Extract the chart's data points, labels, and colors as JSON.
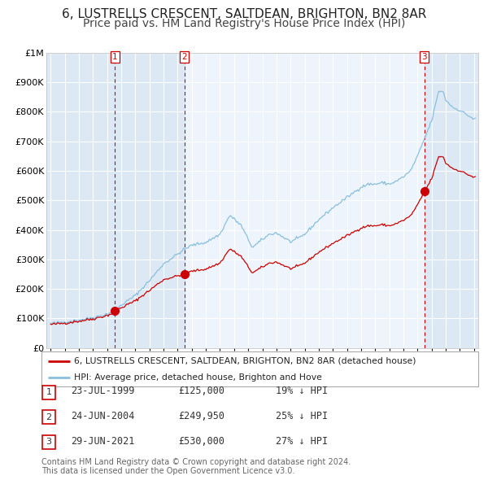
{
  "title1": "6, LUSTRELLS CRESCENT, SALTDEAN, BRIGHTON, BN2 8AR",
  "title2": "Price paid vs. HM Land Registry's House Price Index (HPI)",
  "legend_property": "6, LUSTRELLS CRESCENT, SALTDEAN, BRIGHTON, BN2 8AR (detached house)",
  "legend_hpi": "HPI: Average price, detached house, Brighton and Hove",
  "footer1": "Contains HM Land Registry data © Crown copyright and database right 2024.",
  "footer2": "This data is licensed under the Open Government Licence v3.0.",
  "transactions": [
    {
      "label": "1",
      "date_str": "23-JUL-1999",
      "year": 1999.55,
      "price": 125000,
      "price_str": "£125,000",
      "pct": "19% ↓ HPI"
    },
    {
      "label": "2",
      "date_str": "24-JUN-2004",
      "year": 2004.48,
      "price": 249950,
      "price_str": "£249,950",
      "pct": "25% ↓ HPI"
    },
    {
      "label": "3",
      "date_str": "29-JUN-2021",
      "year": 2021.49,
      "price": 530000,
      "price_str": "£530,000",
      "pct": "27% ↓ HPI"
    }
  ],
  "ylim": [
    0,
    1000000
  ],
  "xlim": [
    1994.7,
    2025.3
  ],
  "hpi_color": "#89bfdf",
  "property_color": "#cc0000",
  "shade_color": "#dce9f5",
  "plot_bg": "#eef4fb",
  "fig_bg": "#ffffff",
  "grid_color": "#ffffff",
  "title_fontsize": 11,
  "subtitle_fontsize": 10
}
